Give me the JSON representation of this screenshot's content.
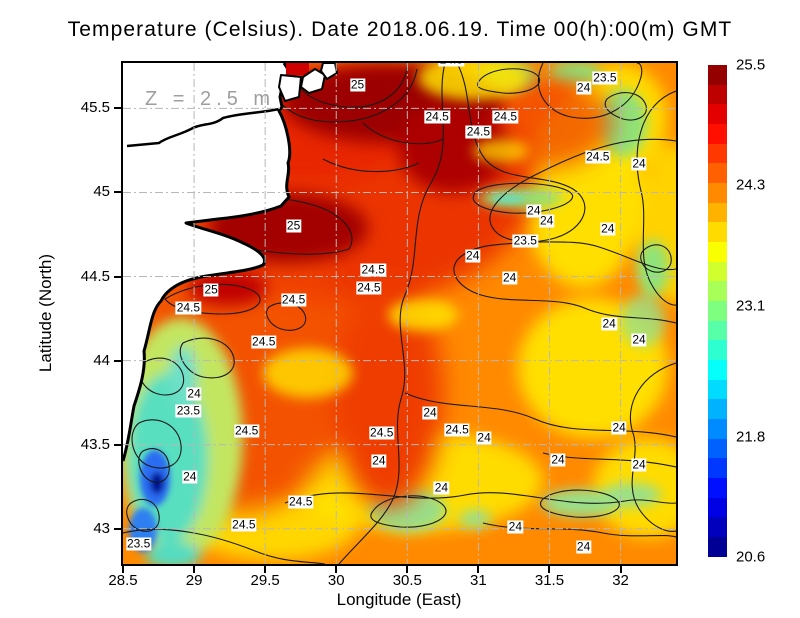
{
  "chart_data": {
    "type": "heatmap",
    "title": "Temperature (Celsius). Date 2018.06.19. Time 00(h):00(m) GMT",
    "xlabel": "Longitude (East)",
    "ylabel": "Latitude (North)",
    "depth_annotation": "Z = 2.5 m",
    "xlim": [
      28.5,
      32.39
    ],
    "ylim": [
      42.79,
      45.77
    ],
    "x_ticks": [
      28.5,
      29,
      29.5,
      30,
      30.5,
      31,
      31.5,
      32
    ],
    "x_tick_labels": [
      "28.5",
      "29",
      "29.5",
      "30",
      "30.5",
      "31",
      "31.5",
      "32"
    ],
    "y_ticks": [
      43,
      43.5,
      44,
      44.5,
      45,
      45.5
    ],
    "y_tick_labels": [
      "43",
      "43.5",
      "44",
      "44.5",
      "45",
      "45.5"
    ],
    "grid": "dash-dot",
    "contour_interval": 0.5,
    "contour_levels": [
      23.5,
      24,
      24.5,
      25
    ],
    "contour_labels": [
      {
        "value": "24.5",
        "lon": 30.81,
        "lat": 45.79
      },
      {
        "value": "25",
        "lon": 30.15,
        "lat": 45.64
      },
      {
        "value": "23.5",
        "lon": 31.89,
        "lat": 45.68
      },
      {
        "value": "24",
        "lon": 31.74,
        "lat": 45.62
      },
      {
        "value": "24.5",
        "lon": 30.71,
        "lat": 45.45
      },
      {
        "value": "24.5",
        "lon": 31.19,
        "lat": 45.45
      },
      {
        "value": "24.5",
        "lon": 31.0,
        "lat": 45.36
      },
      {
        "value": "24.5",
        "lon": 31.84,
        "lat": 45.21
      },
      {
        "value": "24",
        "lon": 32.13,
        "lat": 45.17
      },
      {
        "value": "25",
        "lon": 29.7,
        "lat": 44.8
      },
      {
        "value": "24",
        "lon": 31.39,
        "lat": 44.89
      },
      {
        "value": "24",
        "lon": 31.48,
        "lat": 44.83
      },
      {
        "value": "23.5",
        "lon": 31.33,
        "lat": 44.71
      },
      {
        "value": "24",
        "lon": 31.91,
        "lat": 44.78
      },
      {
        "value": "24",
        "lon": 30.96,
        "lat": 44.62
      },
      {
        "value": "24",
        "lon": 31.22,
        "lat": 44.49
      },
      {
        "value": "25",
        "lon": 29.12,
        "lat": 44.42
      },
      {
        "value": "24.5",
        "lon": 30.26,
        "lat": 44.54
      },
      {
        "value": "24.5",
        "lon": 30.23,
        "lat": 44.43
      },
      {
        "value": "24.5",
        "lon": 28.96,
        "lat": 44.31
      },
      {
        "value": "24.5",
        "lon": 29.7,
        "lat": 44.36
      },
      {
        "value": "24.5",
        "lon": 29.49,
        "lat": 44.11
      },
      {
        "value": "24",
        "lon": 31.92,
        "lat": 44.22
      },
      {
        "value": "24",
        "lon": 32.13,
        "lat": 44.12
      },
      {
        "value": "24",
        "lon": 29.0,
        "lat": 43.8
      },
      {
        "value": "23.5",
        "lon": 28.96,
        "lat": 43.7
      },
      {
        "value": "24.5",
        "lon": 29.37,
        "lat": 43.58
      },
      {
        "value": "24",
        "lon": 28.97,
        "lat": 43.31
      },
      {
        "value": "24",
        "lon": 30.66,
        "lat": 43.69
      },
      {
        "value": "24.5",
        "lon": 30.32,
        "lat": 43.57
      },
      {
        "value": "24.5",
        "lon": 30.85,
        "lat": 43.59
      },
      {
        "value": "24",
        "lon": 31.04,
        "lat": 43.54
      },
      {
        "value": "24",
        "lon": 31.99,
        "lat": 43.6
      },
      {
        "value": "24",
        "lon": 30.3,
        "lat": 43.4
      },
      {
        "value": "24",
        "lon": 31.56,
        "lat": 43.41
      },
      {
        "value": "24",
        "lon": 32.13,
        "lat": 43.38
      },
      {
        "value": "24",
        "lon": 30.74,
        "lat": 43.24
      },
      {
        "value": "24.5",
        "lon": 29.75,
        "lat": 43.16
      },
      {
        "value": "24.5",
        "lon": 29.35,
        "lat": 43.02
      },
      {
        "value": "24",
        "lon": 31.26,
        "lat": 43.01
      },
      {
        "value": "24",
        "lon": 31.74,
        "lat": 42.89
      },
      {
        "value": "23.5",
        "lon": 28.61,
        "lat": 42.91
      }
    ],
    "colorbar": {
      "min": 20.6,
      "max": 25.5,
      "tick_values": [
        25.5,
        24.3,
        23.1,
        21.8,
        20.6
      ],
      "tick_labels": [
        "25.5",
        "24.3",
        "23.1",
        "21.8",
        "20.6"
      ],
      "band_colors_top_to_bottom": [
        "#940000",
        "#bd0000",
        "#e50000",
        "#ff0f00",
        "#ff3800",
        "#ff6100",
        "#ff8a00",
        "#ffb200",
        "#ffdb00",
        "#faff00",
        "#d1ff2e",
        "#a8ff57",
        "#7fff7f",
        "#57ffa8",
        "#2effd1",
        "#05fffa",
        "#00dbff",
        "#00b2ff",
        "#008aff",
        "#0061ff",
        "#0038ff",
        "#000fff",
        "#0000e5",
        "#0000bd",
        "#000094"
      ]
    },
    "palette": {
      "land": "#ffffff",
      "coastline": "#000000",
      "gridline": "#b8b8b8",
      "frame": "#000000",
      "annotation_grey": "#9e9e9e"
    }
  }
}
